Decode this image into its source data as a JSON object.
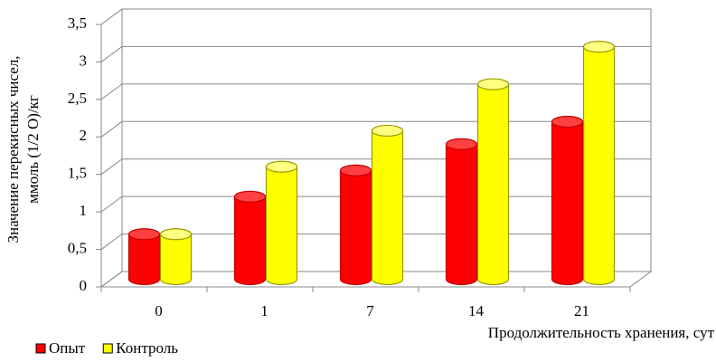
{
  "chart_data": {
    "type": "bar3d-cylinder",
    "y_label": [
      "Значение перекисных чисел,",
      "ммоль (1/2 О)/кг"
    ],
    "x_label": "Продолжительность хранения, сут",
    "categories": [
      "0",
      "1",
      "7",
      "14",
      "21"
    ],
    "series": [
      {
        "name": "Опыт",
        "color": "#ff0000",
        "values": [
          0.6,
          1.1,
          1.45,
          1.8,
          2.1
        ]
      },
      {
        "name": "Контроль",
        "color": "#ffff00",
        "values": [
          0.6,
          1.5,
          1.98,
          2.6,
          3.1
        ]
      }
    ],
    "ylim": [
      0,
      3.5
    ],
    "yticks": [
      0,
      {
        "value": 0.5,
        "label": "0,5"
      },
      1,
      {
        "value": 1.5,
        "label": "1,5"
      },
      2,
      {
        "value": 2.5,
        "label": "2,5"
      },
      3,
      {
        "value": 3.5,
        "label": "3,5"
      }
    ],
    "grid": true
  }
}
